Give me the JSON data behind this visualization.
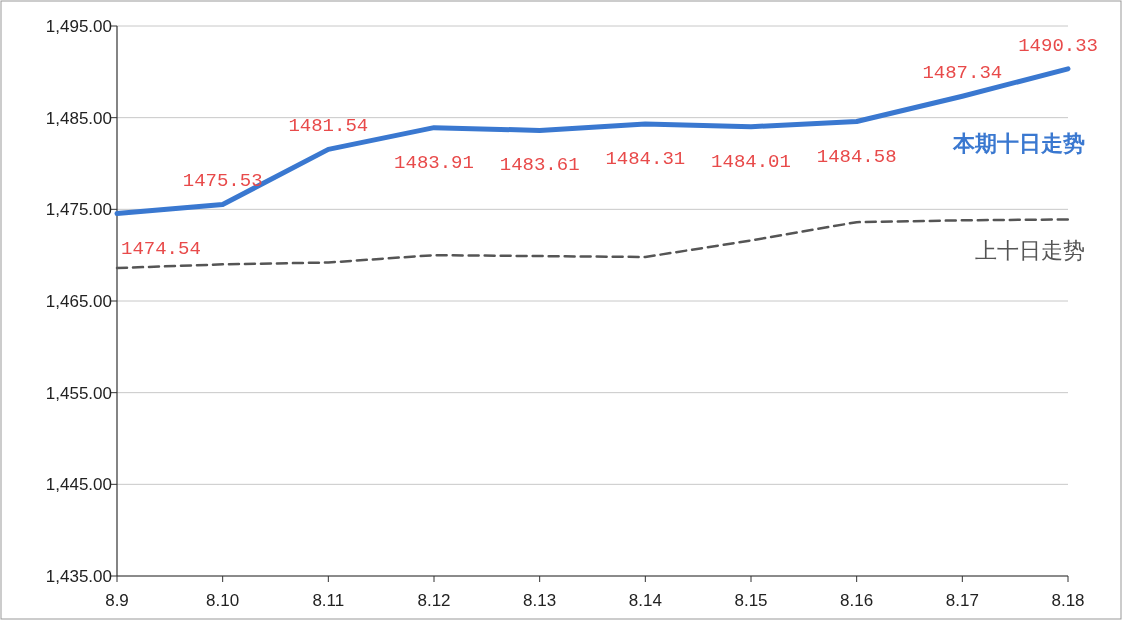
{
  "chart_data": {
    "type": "line",
    "categories": [
      "8.9",
      "8.10",
      "8.11",
      "8.12",
      "8.13",
      "8.14",
      "8.15",
      "8.16",
      "8.17",
      "8.18"
    ],
    "series": [
      {
        "name": "本期十日走势",
        "color": "#3a78d0",
        "line_style": "solid",
        "values": [
          1474.54,
          1475.53,
          1481.54,
          1483.91,
          1483.61,
          1484.31,
          1484.01,
          1484.58,
          1487.34,
          1490.33
        ],
        "value_labels": [
          "1474.54",
          "1475.53",
          "1481.54",
          "1483.91",
          "1483.61",
          "1484.31",
          "1484.01",
          "1484.58",
          "1487.34",
          "1490.33"
        ]
      },
      {
        "name": "上十日走势",
        "color": "#555555",
        "line_style": "dashed",
        "values": [
          1468.6,
          1469.0,
          1469.2,
          1470.0,
          1469.9,
          1469.8,
          1471.6,
          1473.6,
          1473.8,
          1473.9
        ]
      }
    ],
    "ylim": [
      1435,
      1495
    ],
    "yticks": [
      {
        "value": 1435,
        "label": "1,435.00"
      },
      {
        "value": 1445,
        "label": "1,445.00"
      },
      {
        "value": 1455,
        "label": "1,455.00"
      },
      {
        "value": 1465,
        "label": "1,465.00"
      },
      {
        "value": 1475,
        "label": "1,475.00"
      },
      {
        "value": 1485,
        "label": "1,485.00"
      },
      {
        "value": 1495,
        "label": "1,495.00"
      }
    ],
    "grid": "y",
    "legend": false,
    "marker": "none"
  }
}
